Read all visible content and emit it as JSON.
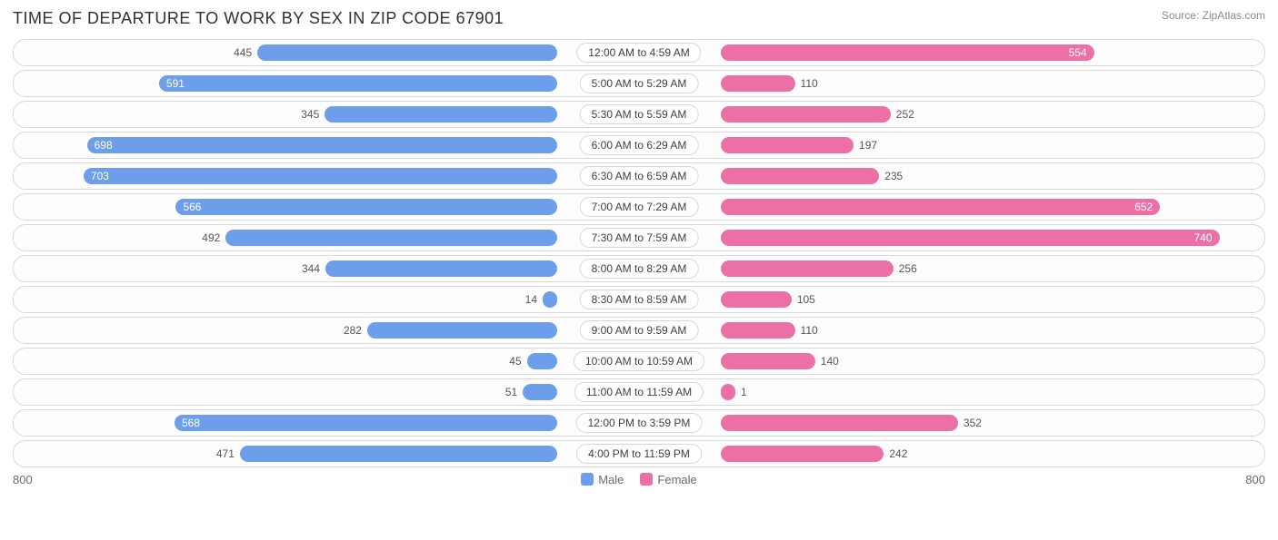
{
  "title": "TIME OF DEPARTURE TO WORK BY SEX IN ZIP CODE 67901",
  "source_label": "Source:",
  "source_name": "ZipAtlas.com",
  "axis_max": 800,
  "axis_label": "800",
  "colors": {
    "male": "#6d9eeb",
    "female": "#ec6fa6",
    "row_border": "#d8d8d8",
    "text": "#404040",
    "out_text": "#555555",
    "background": "#ffffff"
  },
  "legend": {
    "male": "Male",
    "female": "Female"
  },
  "inside_threshold": 500,
  "label_half_width": 90,
  "rows": [
    {
      "label": "12:00 AM to 4:59 AM",
      "male": 445,
      "female": 554
    },
    {
      "label": "5:00 AM to 5:29 AM",
      "male": 591,
      "female": 110
    },
    {
      "label": "5:30 AM to 5:59 AM",
      "male": 345,
      "female": 252
    },
    {
      "label": "6:00 AM to 6:29 AM",
      "male": 698,
      "female": 197
    },
    {
      "label": "6:30 AM to 6:59 AM",
      "male": 703,
      "female": 235
    },
    {
      "label": "7:00 AM to 7:29 AM",
      "male": 566,
      "female": 652
    },
    {
      "label": "7:30 AM to 7:59 AM",
      "male": 492,
      "female": 740
    },
    {
      "label": "8:00 AM to 8:29 AM",
      "male": 344,
      "female": 256
    },
    {
      "label": "8:30 AM to 8:59 AM",
      "male": 14,
      "female": 105
    },
    {
      "label": "9:00 AM to 9:59 AM",
      "male": 282,
      "female": 110
    },
    {
      "label": "10:00 AM to 10:59 AM",
      "male": 45,
      "female": 140
    },
    {
      "label": "11:00 AM to 11:59 AM",
      "male": 51,
      "female": 1
    },
    {
      "label": "12:00 PM to 3:59 PM",
      "male": 568,
      "female": 352
    },
    {
      "label": "4:00 PM to 11:59 PM",
      "male": 471,
      "female": 242
    }
  ]
}
